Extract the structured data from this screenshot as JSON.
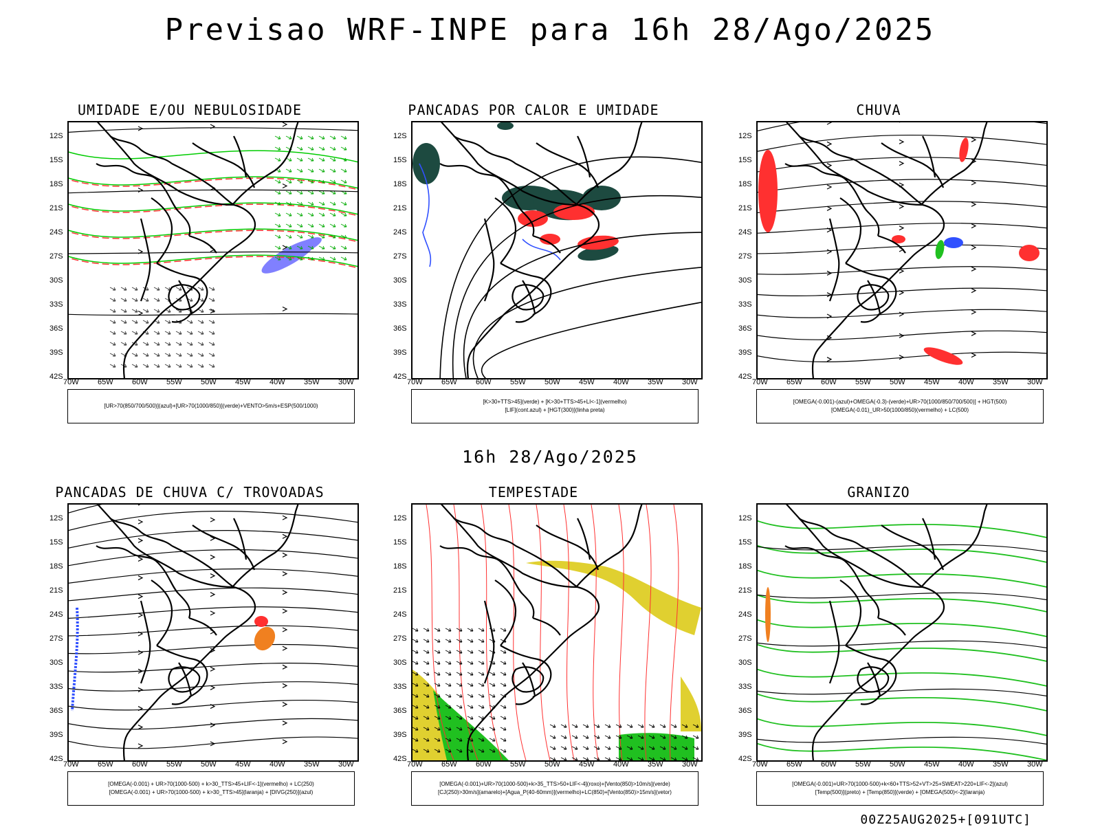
{
  "header": {
    "title": "Previsao WRF-INPE  para 16h 28/Ago/2025"
  },
  "mid_title": "16h 28/Ago/2025",
  "footer": {
    "stamp": "00Z25AUG2025+[091UTC]"
  },
  "axes": {
    "lat_labels": [
      "12S",
      "15S",
      "18S",
      "21S",
      "24S",
      "27S",
      "30S",
      "33S",
      "36S",
      "39S",
      "42S"
    ],
    "lon_labels": [
      "70W",
      "65W",
      "60W",
      "55W",
      "50W",
      "45W",
      "40W",
      "35W",
      "30W"
    ]
  },
  "colors": {
    "humidity_mid": "#8080ff",
    "humidity_low": "#00cc00",
    "contour_red": "#ff3030",
    "thunder_red": "#ff3030",
    "thunder_orange": "#f08020",
    "divergence_blue": "#3050ff",
    "jet_yellow": "#e0d030",
    "green_band": "#20c020",
    "dark_green": "#1d4a40"
  },
  "panels": [
    {
      "title": "UMIDADE E/OU NEBULOSIDADE",
      "legend": [
        "[UR>70(850/700/500)](azul)+[UR>70(1000/850)](verde)+VENTO>5m/s+ESP(500/1000)"
      ]
    },
    {
      "title": "PANCADAS POR CALOR E UMIDADE",
      "legend": [
        "[K>30+TTS>45](verde) + [K>30+TTS>45+LI<-1](vermelho)",
        "[LIF](cont.azul) + [HGT(300)](linha preta)"
      ]
    },
    {
      "title": "CHUVA",
      "legend": [
        "[OMEGA(-0.001)-(azul)+OMEGA(-0.3)-(verde)+UR>70(1000/850/700/500)] + HGT(500)",
        "[OMEGA(-0.01)_UR>50(1000/850)(vermelho) + LC(500)"
      ]
    },
    {
      "title": "PANCADAS DE CHUVA C/ TROVOADAS",
      "legend": [
        "[OMEGA(-0.001) + UR>70(1000-500) + k>30_TTS>45+LIF<-1](vermelho) + LC(250)",
        "[OMEGA(-0.001) + UR>70(1000-500) + k>30_TTS>45](laranja) + [DIVG(250)](azul)"
      ]
    },
    {
      "title": "TEMPESTADE",
      "legend": [
        "[OMEGA(-0.001)+UR>70(1000-500)+k>35_TTS>50+LIF<-4](roxo)+[Vento(850)>10m/s](verde)",
        "[CJ(250)>30m/s](amarelo)+[Agua_P(40-60mm)](vermelho)+LC(850)+[Vento(850)>15m/s](vetor)"
      ]
    },
    {
      "title": "GRANIZO",
      "legend": [
        "[OMEGA(-0.001)+UR>70(1000-500)+k<60+TTS>52+VT>25+SWEAT>220+LIF<-2](azul)",
        "[Temp(500)](preto) + [Temp(850)](verde) + [OMEGA(500)<-2](laranja)"
      ]
    }
  ]
}
